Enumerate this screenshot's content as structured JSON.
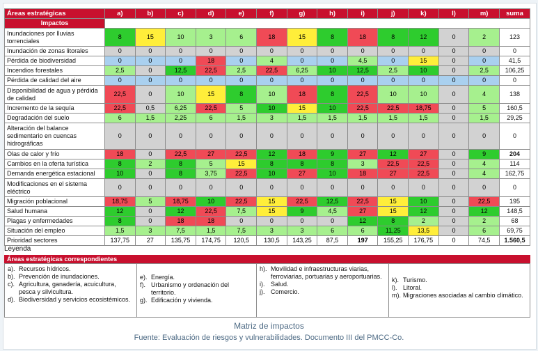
{
  "header": {
    "areas_label": "Áreas estratégicas",
    "impactos_label": "Impactos",
    "columns": [
      "a)",
      "b)",
      "c)",
      "d)",
      "e)",
      "f)",
      "g)",
      "h)",
      "i)",
      "j)",
      "k)",
      "l)",
      "m)"
    ],
    "sum_label": "suma"
  },
  "rows": [
    {
      "label": "Inundaciones por lluvias torrenciales",
      "cells": [
        [
          "8",
          "g"
        ],
        [
          "15",
          "y"
        ],
        [
          "10",
          "lg"
        ],
        [
          "3",
          "lg"
        ],
        [
          "6",
          "lg"
        ],
        [
          "18",
          "r"
        ],
        [
          "15",
          "y"
        ],
        [
          "8",
          "g"
        ],
        [
          "18",
          "r"
        ],
        [
          "8",
          "g"
        ],
        [
          "12",
          "g"
        ],
        [
          "0",
          "gray"
        ],
        [
          "2",
          "lg"
        ]
      ],
      "sum": "123",
      "h": 26
    },
    {
      "label": "Inundación de zonas litorales",
      "cells": [
        [
          "0",
          "gray"
        ],
        [
          "0",
          "gray"
        ],
        [
          "0",
          "gray"
        ],
        [
          "0",
          "gray"
        ],
        [
          "0",
          "gray"
        ],
        [
          "0",
          "gray"
        ],
        [
          "0",
          "gray"
        ],
        [
          "0",
          "gray"
        ],
        [
          "0",
          "gray"
        ],
        [
          "0",
          "gray"
        ],
        [
          "0",
          "gray"
        ],
        [
          "0",
          "gray"
        ],
        [
          "0",
          "gray"
        ]
      ],
      "sum": "0",
      "h": 13
    },
    {
      "label": "Pérdida de biodiversidad",
      "cells": [
        [
          "0",
          "b"
        ],
        [
          "0",
          "b"
        ],
        [
          "0",
          "b"
        ],
        [
          "18",
          "r"
        ],
        [
          "0",
          "b"
        ],
        [
          "4",
          "lg"
        ],
        [
          "0",
          "b"
        ],
        [
          "0",
          "b"
        ],
        [
          "4,5",
          "lg"
        ],
        [
          "0",
          "b"
        ],
        [
          "15",
          "y"
        ],
        [
          "0",
          "gray"
        ],
        [
          "0",
          "b"
        ]
      ],
      "sum": "41,5",
      "h": 13
    },
    {
      "label": "Incendios forestales",
      "cells": [
        [
          "2,5",
          "lg"
        ],
        [
          "0",
          "gray"
        ],
        [
          "12,5",
          "g"
        ],
        [
          "22,5",
          "r"
        ],
        [
          "2,5",
          "lg"
        ],
        [
          "22,5",
          "r"
        ],
        [
          "6,25",
          "lg"
        ],
        [
          "10",
          "g"
        ],
        [
          "12,5",
          "g"
        ],
        [
          "2,5",
          "lg"
        ],
        [
          "10",
          "g"
        ],
        [
          "0",
          "gray"
        ],
        [
          "2,5",
          "lg"
        ]
      ],
      "sum": "106,25",
      "h": 13
    },
    {
      "label": "Pérdida de calidad del aire",
      "cells": [
        [
          "0",
          "b"
        ],
        [
          "0",
          "b"
        ],
        [
          "0",
          "b"
        ],
        [
          "0",
          "b"
        ],
        [
          "0",
          "b"
        ],
        [
          "0",
          "b"
        ],
        [
          "0",
          "b"
        ],
        [
          "0",
          "b"
        ],
        [
          "0",
          "b"
        ],
        [
          "0",
          "b"
        ],
        [
          "0",
          "b"
        ],
        [
          "0",
          "b"
        ],
        [
          "0",
          "b"
        ]
      ],
      "sum": "0",
      "h": 13
    },
    {
      "label": "Disponibilidad de agua y pérdida de calidad",
      "cells": [
        [
          "22,5",
          "r"
        ],
        [
          "0",
          "gray"
        ],
        [
          "10",
          "lg"
        ],
        [
          "15",
          "y"
        ],
        [
          "8",
          "g"
        ],
        [
          "10",
          "lg"
        ],
        [
          "18",
          "r"
        ],
        [
          "8",
          "g"
        ],
        [
          "22,5",
          "r"
        ],
        [
          "10",
          "lg"
        ],
        [
          "10",
          "lg"
        ],
        [
          "0",
          "gray"
        ],
        [
          "4",
          "lg"
        ]
      ],
      "sum": "138",
      "h": 26
    },
    {
      "label": "Incremento de la sequía",
      "cells": [
        [
          "22,5",
          "r"
        ],
        [
          "0,5",
          "gray"
        ],
        [
          "6,25",
          "lg"
        ],
        [
          "22,5",
          "r"
        ],
        [
          "5",
          "lg"
        ],
        [
          "10",
          "g"
        ],
        [
          "15",
          "y"
        ],
        [
          "10",
          "g"
        ],
        [
          "22,5",
          "r"
        ],
        [
          "22,5",
          "r"
        ],
        [
          "18,75",
          "r"
        ],
        [
          "0",
          "gray"
        ],
        [
          "5",
          "lg"
        ]
      ],
      "sum": "160,5",
      "h": 13
    },
    {
      "label": "Degradación del suelo",
      "cells": [
        [
          "6",
          "lg"
        ],
        [
          "1,5",
          "lg"
        ],
        [
          "2,25",
          "lg"
        ],
        [
          "6",
          "lg"
        ],
        [
          "1,5",
          "lg"
        ],
        [
          "3",
          "lg"
        ],
        [
          "1,5",
          "lg"
        ],
        [
          "1,5",
          "lg"
        ],
        [
          "1,5",
          "lg"
        ],
        [
          "1,5",
          "lg"
        ],
        [
          "1,5",
          "lg"
        ],
        [
          "0",
          "gray"
        ],
        [
          "1,5",
          "lg"
        ]
      ],
      "sum": "29,25",
      "h": 13
    },
    {
      "label": "Alteración del balance sedimentario en cuencas hidrográficas",
      "cells": [
        [
          "0",
          "gray"
        ],
        [
          "0",
          "gray"
        ],
        [
          "0",
          "gray"
        ],
        [
          "0",
          "gray"
        ],
        [
          "0",
          "gray"
        ],
        [
          "0",
          "gray"
        ],
        [
          "0",
          "gray"
        ],
        [
          "0",
          "gray"
        ],
        [
          "0",
          "gray"
        ],
        [
          "0",
          "gray"
        ],
        [
          "0",
          "gray"
        ],
        [
          "0",
          "gray"
        ],
        [
          "0",
          "gray"
        ]
      ],
      "sum": "0",
      "h": 38
    },
    {
      "label": "Olas de calor y frío",
      "cells": [
        [
          "18",
          "r"
        ],
        [
          "0",
          "gray"
        ],
        [
          "22,5",
          "r"
        ],
        [
          "27",
          "r"
        ],
        [
          "22,5",
          "r"
        ],
        [
          "12",
          "g"
        ],
        [
          "18",
          "r"
        ],
        [
          "9",
          "g"
        ],
        [
          "27",
          "r"
        ],
        [
          "12",
          "g"
        ],
        [
          "27",
          "r"
        ],
        [
          "0",
          "gray"
        ],
        [
          "9",
          "g"
        ]
      ],
      "sum": "204",
      "sum_bold": true,
      "h": 13
    },
    {
      "label": "Cambios en la oferta turística",
      "cells": [
        [
          "8",
          "g"
        ],
        [
          "2",
          "lg"
        ],
        [
          "8",
          "g"
        ],
        [
          "5",
          "lg"
        ],
        [
          "15",
          "y"
        ],
        [
          "8",
          "g"
        ],
        [
          "8",
          "g"
        ],
        [
          "8",
          "g"
        ],
        [
          "3",
          "lg"
        ],
        [
          "22,5",
          "r"
        ],
        [
          "22,5",
          "r"
        ],
        [
          "0",
          "gray"
        ],
        [
          "4",
          "lg"
        ]
      ],
      "sum": "114",
      "h": 13
    },
    {
      "label": "Demanda energética estacional",
      "cells": [
        [
          "10",
          "g"
        ],
        [
          "0",
          "gray"
        ],
        [
          "8",
          "g"
        ],
        [
          "3,75",
          "lg"
        ],
        [
          "22,5",
          "r"
        ],
        [
          "10",
          "g"
        ],
        [
          "27",
          "r"
        ],
        [
          "10",
          "g"
        ],
        [
          "18",
          "r"
        ],
        [
          "27",
          "r"
        ],
        [
          "22,5",
          "r"
        ],
        [
          "0",
          "gray"
        ],
        [
          "4",
          "lg"
        ]
      ],
      "sum": "162,75",
      "h": 13
    },
    {
      "label": "Modificaciones en el sistema eléctrico",
      "cells": [
        [
          "0",
          "gray"
        ],
        [
          "0",
          "gray"
        ],
        [
          "0",
          "gray"
        ],
        [
          "0",
          "gray"
        ],
        [
          "0",
          "gray"
        ],
        [
          "0",
          "gray"
        ],
        [
          "0",
          "gray"
        ],
        [
          "0",
          "gray"
        ],
        [
          "0",
          "gray"
        ],
        [
          "0",
          "gray"
        ],
        [
          "0",
          "gray"
        ],
        [
          "0",
          "gray"
        ],
        [
          "0",
          "gray"
        ]
      ],
      "sum": "0",
      "h": 26
    },
    {
      "label": "Migración poblacional",
      "cells": [
        [
          "18,75",
          "r"
        ],
        [
          "5",
          "lg"
        ],
        [
          "18,75",
          "r"
        ],
        [
          "10",
          "g"
        ],
        [
          "22,5",
          "r"
        ],
        [
          "15",
          "y"
        ],
        [
          "22,5",
          "r"
        ],
        [
          "12,5",
          "g"
        ],
        [
          "22,5",
          "r"
        ],
        [
          "15",
          "y"
        ],
        [
          "10",
          "g"
        ],
        [
          "0",
          "gray"
        ],
        [
          "22,5",
          "r"
        ]
      ],
      "sum": "195",
      "h": 13
    },
    {
      "label": "Salud humana",
      "cells": [
        [
          "12",
          "g"
        ],
        [
          "0",
          "gray"
        ],
        [
          "12",
          "g"
        ],
        [
          "22,5",
          "r"
        ],
        [
          "7,5",
          "lg"
        ],
        [
          "15",
          "y"
        ],
        [
          "9",
          "g"
        ],
        [
          "4,5",
          "lg"
        ],
        [
          "27",
          "r"
        ],
        [
          "15",
          "y"
        ],
        [
          "12",
          "g"
        ],
        [
          "0",
          "gray"
        ],
        [
          "12",
          "g"
        ]
      ],
      "sum": "148,5",
      "h": 13
    },
    {
      "label": "Plagas y enfermedades",
      "cells": [
        [
          "8",
          "g"
        ],
        [
          "0",
          "gray"
        ],
        [
          "18",
          "r"
        ],
        [
          "18",
          "r"
        ],
        [
          "0",
          "gray"
        ],
        [
          "0",
          "gray"
        ],
        [
          "0",
          "gray"
        ],
        [
          "0",
          "gray"
        ],
        [
          "12",
          "g"
        ],
        [
          "8",
          "g"
        ],
        [
          "2",
          "lg"
        ],
        [
          "0",
          "gray"
        ],
        [
          "2",
          "lg"
        ]
      ],
      "sum": "68",
      "h": 13
    },
    {
      "label": "Situación del empleo",
      "cells": [
        [
          "1,5",
          "lg"
        ],
        [
          "3",
          "lg"
        ],
        [
          "7,5",
          "lg"
        ],
        [
          "1,5",
          "lg"
        ],
        [
          "7,5",
          "lg"
        ],
        [
          "3",
          "lg"
        ],
        [
          "3",
          "lg"
        ],
        [
          "6",
          "lg"
        ],
        [
          "6",
          "lg"
        ],
        [
          "11,25",
          "g"
        ],
        [
          "13,5",
          "y"
        ],
        [
          "0",
          "gray"
        ],
        [
          "6",
          "lg"
        ]
      ],
      "sum": "69,75",
      "h": 13
    }
  ],
  "priority_row": {
    "label": "Prioridad sectores",
    "cells": [
      "137,75",
      "27",
      "135,75",
      "174,75",
      "120,5",
      "130,5",
      "143,25",
      "87,5",
      "197",
      "155,25",
      "176,75",
      "0",
      "74,5"
    ],
    "bold_index": 8,
    "sum": "1.560,5"
  },
  "legend": {
    "title": "Leyenda",
    "header": "Áreas estratégicas correspondientes",
    "col1": [
      [
        "a).",
        "Recursos hídricos."
      ],
      [
        "b).",
        "Prevención de inundaciones."
      ],
      [
        "c).",
        "Agricultura, ganadería, acuicultura, pesca y silvicultura."
      ],
      [
        "d).",
        "Biodiversidad y servicios ecosistémicos."
      ]
    ],
    "col2": [
      [
        "e).",
        "Energía."
      ],
      [
        "f).",
        "Urbanismo y ordenación del territorio."
      ],
      [
        "g).",
        "Edificación y vivienda."
      ]
    ],
    "col3": [
      [
        "h).",
        "Movilidad e infraestructuras viarias, ferroviarias, portuarias y aeroportuarias."
      ],
      [
        "i).",
        "Salud."
      ],
      [
        "j).",
        "Comercio."
      ]
    ],
    "col4": [
      [
        "k).",
        "Turismo."
      ],
      [
        "l).",
        "Litoral."
      ],
      [
        "m).",
        "Migraciones asociadas al cambio climático."
      ]
    ]
  },
  "caption": {
    "title": "Matriz de impactos",
    "source": "Fuente: Evaluación de riesgos y vulnerabilidades. Documento III del PMCC-Co."
  }
}
